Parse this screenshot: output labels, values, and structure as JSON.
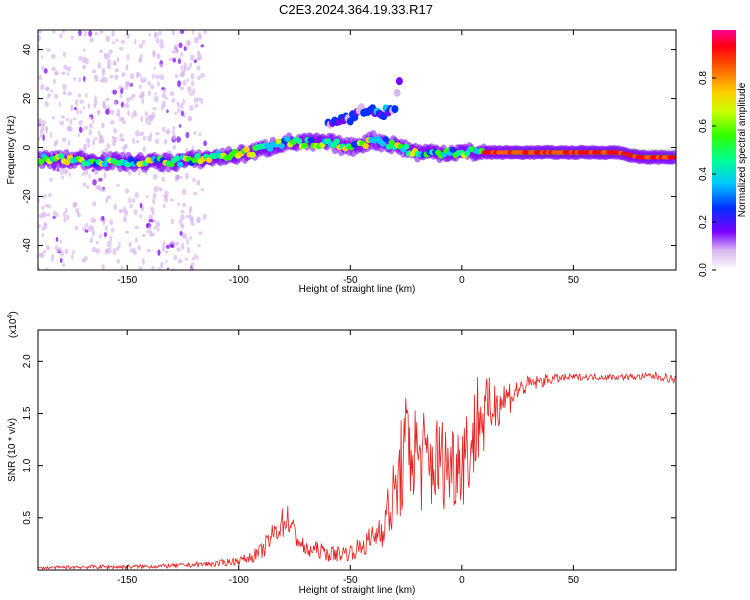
{
  "title": "C2E3.2024.364.19.33.R17",
  "colors": {
    "snr_line": "#e8201e",
    "axis": "#000000",
    "guide": "#2e8b2e"
  },
  "chart_data": [
    {
      "type": "heatmap",
      "xlabel": "Height of straight line (km)",
      "ylabel": "Frequency (Hz)",
      "xlim": [
        -190,
        96
      ],
      "ylim": [
        -50,
        48
      ],
      "x_ticks": [
        "-150",
        "-100",
        "-50",
        "0",
        "50"
      ],
      "x_tick_values": [
        -150,
        -100,
        -50,
        0,
        50
      ],
      "y_ticks": [
        "-40",
        "-20",
        "0",
        "20",
        "40"
      ],
      "y_tick_values": [
        -40,
        -20,
        0,
        20,
        40
      ],
      "colorbar": {
        "label": "Normalized spectral amplitude",
        "range": [
          0,
          1
        ],
        "ticks": [
          "0.0",
          "0.2",
          "0.4",
          "0.6",
          "0.8"
        ],
        "tick_values": [
          0.0,
          0.2,
          0.4,
          0.6,
          0.8
        ]
      },
      "ridge": {
        "x": [
          -190,
          -170,
          -150,
          -130,
          -110,
          -100,
          -90,
          -80,
          -70,
          -60,
          -50,
          -40,
          -30,
          -20,
          -10,
          0,
          10,
          20,
          40,
          60,
          70,
          80,
          96
        ],
        "freq": [
          -5,
          -5,
          -6,
          -6,
          -4,
          -3,
          -1,
          2,
          2,
          2,
          0,
          3,
          1,
          -2,
          -2,
          -2,
          -2,
          -2,
          -2,
          -2,
          -2,
          -4,
          -4
        ]
      },
      "secondary_branch": {
        "x": [
          -60,
          -50,
          -45,
          -40,
          -35,
          -30,
          -28
        ],
        "freq": [
          9,
          12,
          15,
          15,
          14,
          17,
          26
        ]
      }
    },
    {
      "type": "line",
      "xlabel": "Height of straight line (km)",
      "ylabel": "SNR (10 * v/v)",
      "multiplier": "(x10",
      "multiplier_exp": "4",
      "xlim": [
        -190,
        96
      ],
      "ylim": [
        0,
        2.3
      ],
      "x_ticks": [
        "-150",
        "-100",
        "-50",
        "0",
        "50"
      ],
      "x_tick_values": [
        -150,
        -100,
        -50,
        0,
        50
      ],
      "y_ticks": [
        "0.5",
        "1.0",
        "1.5",
        "2.0"
      ],
      "y_tick_values": [
        0.5,
        1.0,
        1.5,
        2.0
      ],
      "series": [
        {
          "x": [
            -190,
            -170,
            -150,
            -130,
            -110,
            -100,
            -95,
            -90,
            -85,
            -82,
            -78,
            -75,
            -70,
            -65,
            -60,
            -55,
            -50,
            -45,
            -40,
            -35,
            -30,
            -27,
            -25,
            -20,
            -15,
            -10,
            -5,
            0,
            5,
            7,
            10,
            15,
            20,
            25,
            30,
            40,
            50,
            60,
            70,
            80,
            85,
            90,
            96
          ],
          "y": [
            0.02,
            0.03,
            0.03,
            0.04,
            0.06,
            0.09,
            0.12,
            0.17,
            0.32,
            0.42,
            0.5,
            0.35,
            0.18,
            0.2,
            0.15,
            0.16,
            0.17,
            0.22,
            0.3,
            0.45,
            0.7,
            1.0,
            1.2,
            1.1,
            1.0,
            1.05,
            1.0,
            1.1,
            1.2,
            1.5,
            1.45,
            1.6,
            1.65,
            1.72,
            1.78,
            1.83,
            1.85,
            1.85,
            1.85,
            1.85,
            1.86,
            1.85,
            1.82
          ],
          "noise": [
            0.01,
            0.02,
            0.02,
            0.02,
            0.03,
            0.04,
            0.05,
            0.08,
            0.12,
            0.15,
            0.15,
            0.12,
            0.08,
            0.08,
            0.07,
            0.08,
            0.08,
            0.1,
            0.15,
            0.22,
            0.4,
            0.5,
            0.5,
            0.55,
            0.5,
            0.45,
            0.45,
            0.5,
            0.45,
            0.5,
            0.4,
            0.25,
            0.2,
            0.12,
            0.08,
            0.05,
            0.03,
            0.03,
            0.03,
            0.03,
            0.04,
            0.04,
            0.04
          ]
        }
      ]
    }
  ]
}
